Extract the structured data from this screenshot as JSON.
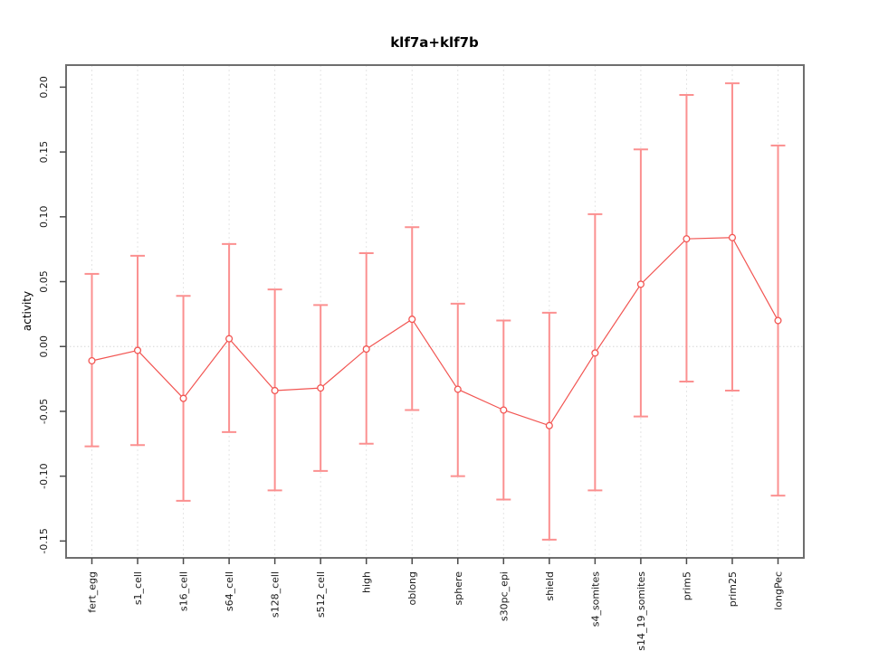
{
  "figure": {
    "title": "klf7a+klf7b",
    "ylabel": "activity"
  },
  "chart_data": {
    "type": "line",
    "title": "klf7a+klf7b",
    "xlabel": "",
    "ylabel": "activity",
    "legend": "none",
    "grid": "vertical dotted gridline at each category; horizontal dotted line at y=0",
    "marker": "open-circle",
    "error_bars": true,
    "categories": [
      "fert_egg",
      "s1_cell",
      "s16_cell",
      "s64_cell",
      "s128_cell",
      "s512_cell",
      "high",
      "oblong",
      "sphere",
      "s30pc_epi",
      "shield",
      "s4_somites",
      "s14_19_somites",
      "prim5",
      "prim25",
      "longPec"
    ],
    "series": [
      {
        "name": "activity",
        "values": [
          -0.011,
          -0.003,
          -0.04,
          0.006,
          -0.034,
          -0.032,
          -0.002,
          0.021,
          -0.033,
          -0.049,
          -0.061,
          -0.005,
          0.048,
          0.083,
          0.084,
          0.02
        ],
        "error_upper": [
          0.056,
          0.07,
          0.039,
          0.079,
          0.044,
          0.032,
          0.072,
          0.092,
          0.033,
          0.02,
          0.026,
          0.102,
          0.152,
          0.194,
          0.203,
          0.155
        ],
        "error_lower": [
          -0.077,
          -0.076,
          -0.119,
          -0.066,
          -0.111,
          -0.096,
          -0.075,
          -0.049,
          -0.1,
          -0.118,
          -0.149,
          -0.111,
          -0.054,
          -0.027,
          -0.034,
          -0.115
        ]
      }
    ],
    "ylim": [
      -0.163,
      0.217
    ],
    "yticks": [
      -0.15,
      -0.1,
      -0.05,
      0.0,
      0.05,
      0.1,
      0.15,
      0.2
    ],
    "ytick_labels": [
      "-0.15",
      "-0.10",
      "-0.05",
      "0.00",
      "0.05",
      "0.10",
      "0.15",
      "0.20"
    ],
    "colors": {
      "series_line": "#f25552",
      "point_stroke": "#f25552",
      "point_fill": "#ffffff",
      "error_bar": "#fb9090",
      "gridline": "#e4e4e4",
      "zero_line": "#d6d6d6",
      "box_border": "#6e6e6e",
      "tick": "#4a4a4a",
      "text": "#1a1a1a"
    }
  }
}
